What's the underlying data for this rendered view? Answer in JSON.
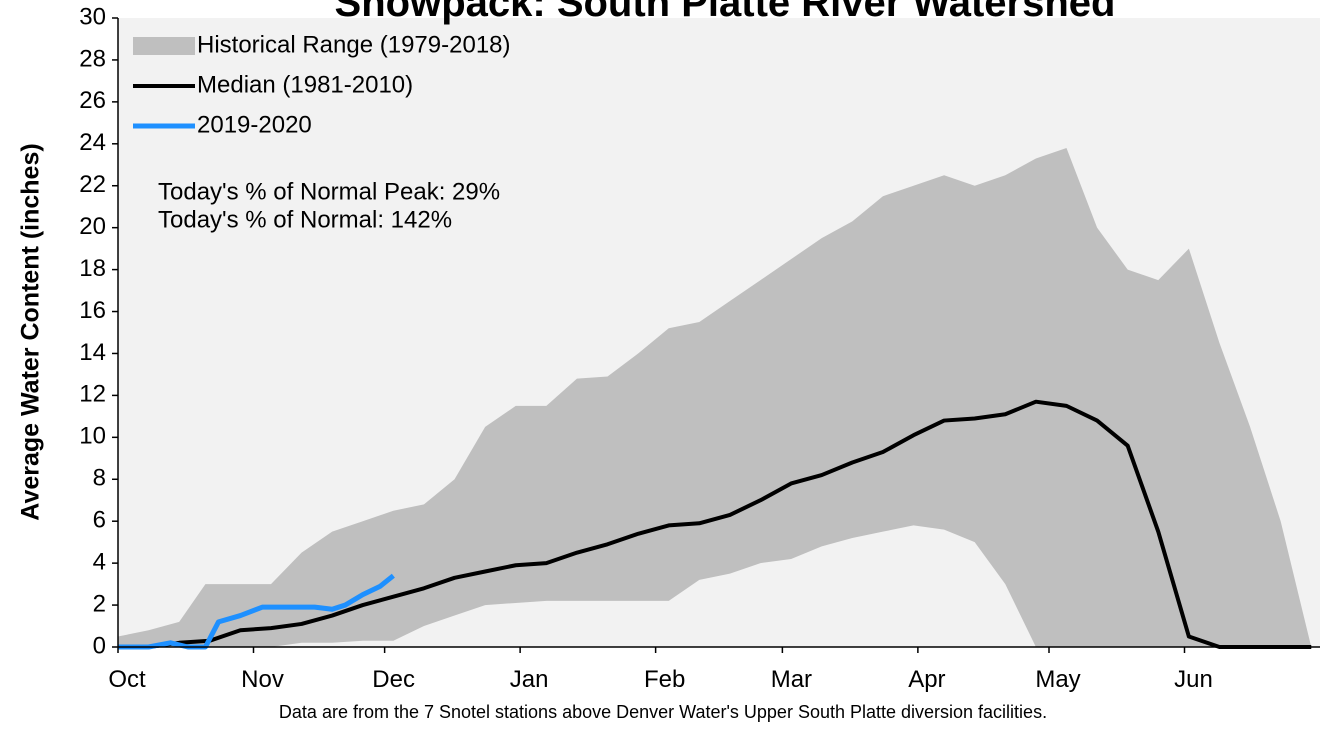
{
  "chart_data": {
    "type": "line",
    "title": "Snowpack: South Platte River Watershed",
    "y_label": "Average Water Content (inches)",
    "annotations": [
      "Today's % of Normal Peak: 29%",
      "Today's % of Normal: 142%"
    ],
    "footnote": "Data are from the 7 Snotel stations above Denver Water's Upper South Platte diversion facilities.",
    "background": "#f2f2f2",
    "xlim": [
      0,
      275
    ],
    "xticks": [
      {
        "value": 0,
        "label": "Oct"
      },
      {
        "value": 31,
        "label": "Nov"
      },
      {
        "value": 61,
        "label": "Dec"
      },
      {
        "value": 92,
        "label": "Jan"
      },
      {
        "value": 123,
        "label": "Feb"
      },
      {
        "value": 152,
        "label": "Mar"
      },
      {
        "value": 183,
        "label": "Apr"
      },
      {
        "value": 213,
        "label": "May"
      },
      {
        "value": 244,
        "label": "Jun"
      }
    ],
    "ylim": [
      0,
      30
    ],
    "yticks": [
      0,
      2,
      4,
      6,
      8,
      10,
      12,
      14,
      16,
      18,
      20,
      22,
      24,
      26,
      28,
      30
    ],
    "range": {
      "name": "Historical Range (1979-2018)",
      "color": "#bfbfbf",
      "x": [
        0,
        7,
        14,
        20,
        28,
        35,
        42,
        49,
        56,
        63,
        70,
        77,
        84,
        91,
        98,
        105,
        112,
        119,
        126,
        133,
        140,
        147,
        154,
        161,
        168,
        175,
        182,
        189,
        196,
        203,
        210,
        217,
        224,
        231,
        238,
        245,
        252,
        259,
        266,
        273
      ],
      "upper": [
        0.5,
        0.8,
        1.2,
        3.0,
        3.0,
        3.0,
        4.5,
        5.5,
        6.0,
        6.5,
        6.8,
        8.0,
        10.5,
        11.5,
        11.5,
        12.8,
        12.9,
        14.0,
        15.2,
        15.5,
        16.5,
        17.5,
        18.5,
        19.5,
        20.3,
        21.5,
        22.0,
        22.5,
        22.0,
        22.5,
        23.3,
        23.8,
        20.0,
        18.0,
        17.5,
        19.0,
        14.5,
        10.5,
        6.0,
        0
      ],
      "lower": [
        0,
        0,
        0,
        0,
        0,
        0,
        0.2,
        0.2,
        0.3,
        0.3,
        1.0,
        1.5,
        2.0,
        2.1,
        2.2,
        2.2,
        2.2,
        2.2,
        2.2,
        3.2,
        3.5,
        4.0,
        4.2,
        4.8,
        5.2,
        5.5,
        5.8,
        5.6,
        5.0,
        3.0,
        0,
        0,
        0,
        0,
        0,
        0,
        0,
        0,
        0,
        0
      ]
    },
    "series": [
      {
        "name": "Median (1981-2010)",
        "color": "#000000",
        "x": [
          0,
          7,
          14,
          21,
          28,
          35,
          42,
          49,
          56,
          63,
          70,
          77,
          84,
          91,
          98,
          105,
          112,
          119,
          126,
          133,
          140,
          147,
          154,
          161,
          168,
          175,
          182,
          189,
          196,
          203,
          210,
          217,
          224,
          231,
          238,
          245,
          252,
          259,
          266,
          273
        ],
        "values": [
          0,
          0,
          0.2,
          0.3,
          0.8,
          0.9,
          1.1,
          1.5,
          2.0,
          2.4,
          2.8,
          3.3,
          3.6,
          3.9,
          4.0,
          4.5,
          4.9,
          5.4,
          5.8,
          5.9,
          6.3,
          7.0,
          7.8,
          8.2,
          8.8,
          9.3,
          10.1,
          10.8,
          10.9,
          11.1,
          11.7,
          11.5,
          10.8,
          9.6,
          5.5,
          0.5,
          0,
          0,
          0,
          0
        ]
      },
      {
        "name": "2019-2020",
        "color": "#1e90ff",
        "x": [
          0,
          7,
          12,
          16,
          20,
          23,
          28,
          33,
          40,
          45,
          49,
          52,
          56,
          60,
          63
        ],
        "values": [
          0,
          0,
          0.2,
          0,
          0,
          1.2,
          1.5,
          1.9,
          1.9,
          1.9,
          1.8,
          2.0,
          2.5,
          2.9,
          3.4
        ]
      }
    ]
  }
}
